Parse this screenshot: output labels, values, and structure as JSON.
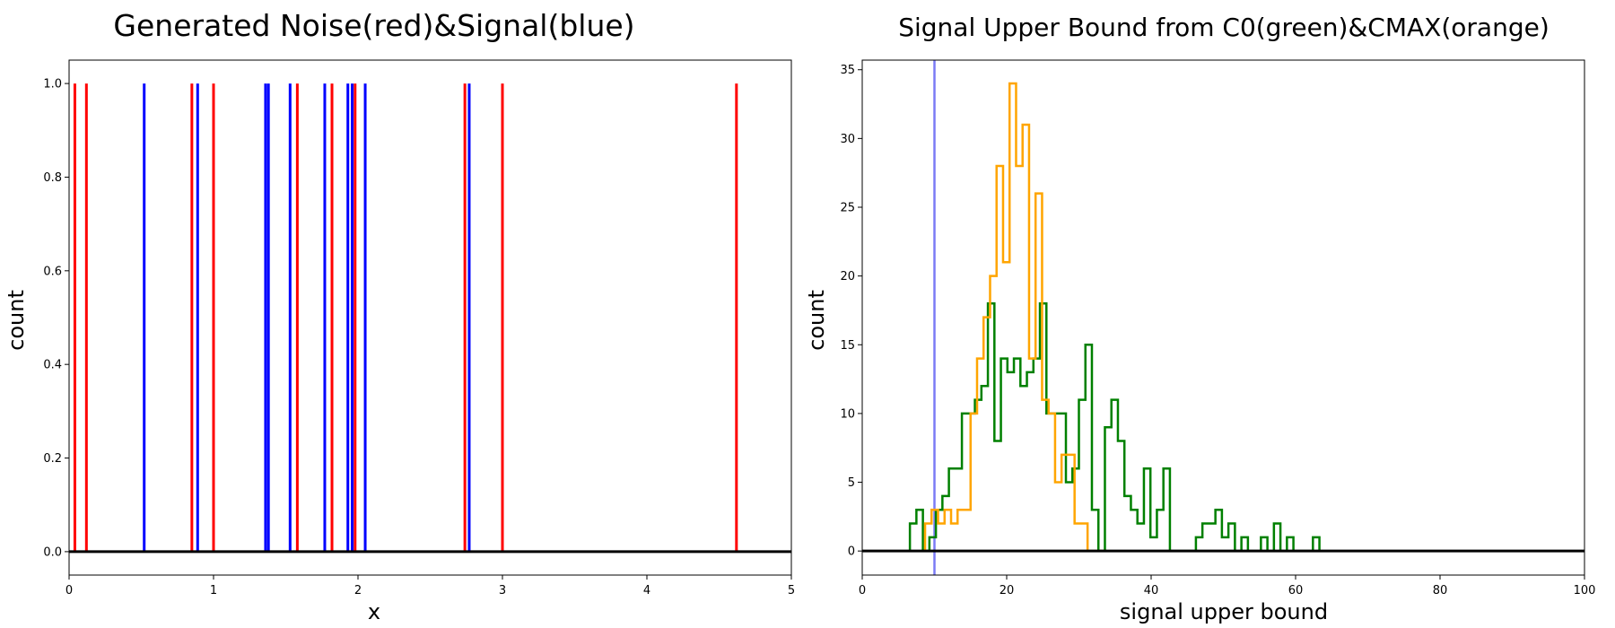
{
  "chart_data": [
    {
      "type": "line",
      "chart_style": "vertical impulse lines with a horizontal baseline",
      "title": "Generated Noise(red)&Signal(blue)",
      "xlabel": "x",
      "ylabel": "count",
      "xlim": [
        0,
        5
      ],
      "ylim": [
        -0.05,
        1.05
      ],
      "xticks": [
        0,
        1,
        2,
        3,
        4,
        5
      ],
      "xtick_labels": [
        "0",
        "1",
        "2",
        "3",
        "4",
        "5"
      ],
      "yticks": [
        0.0,
        0.2,
        0.4,
        0.6,
        0.8,
        1.0
      ],
      "ytick_labels": [
        "0.0",
        "0.2",
        "0.4",
        "0.6",
        "0.8",
        "1.0"
      ],
      "grid": false,
      "baseline": 0,
      "series": [
        {
          "color": "#ff0000",
          "x": [
            0.04,
            0.12,
            0.85,
            1.0,
            1.58,
            1.82,
            1.98,
            2.74,
            3.0,
            4.62
          ],
          "y": [
            1,
            1,
            1,
            1,
            1,
            1,
            1,
            1,
            1,
            1
          ]
        },
        {
          "color": "#0000ff",
          "x": [
            0.52,
            0.89,
            1.36,
            1.38,
            1.53,
            1.77,
            1.93,
            1.96,
            2.05,
            2.77
          ],
          "y": [
            1,
            1,
            1,
            1,
            1,
            1,
            1,
            1,
            1,
            1
          ]
        }
      ]
    },
    {
      "type": "line",
      "chart_style": "step histogram",
      "title": "Signal Upper Bound from C0(green)&CMAX(orange)",
      "xlabel": "signal upper bound",
      "ylabel": "count",
      "xlim": [
        0,
        100
      ],
      "ylim": [
        -1.75,
        35.7
      ],
      "xticks": [
        0,
        20,
        40,
        60,
        80,
        100
      ],
      "xtick_labels": [
        "0",
        "20",
        "40",
        "60",
        "80",
        "100"
      ],
      "yticks": [
        0,
        5,
        10,
        15,
        20,
        25,
        30,
        35
      ],
      "ytick_labels": [
        "0",
        "5",
        "10",
        "15",
        "20",
        "25",
        "30",
        "35"
      ],
      "grid": false,
      "baseline": 0,
      "vline": {
        "x": 10,
        "color": "#7b7bf5"
      },
      "series": [
        {
          "color": "#008000",
          "bin_edges": [
            6.6,
            7.5,
            8.4,
            9.3,
            10.2,
            11.1,
            12.0,
            12.9,
            13.8,
            14.7,
            15.6,
            16.5,
            17.4,
            18.3,
            19.2,
            20.1,
            21.0,
            21.9,
            22.8,
            23.7,
            24.6,
            25.5,
            26.4,
            27.3,
            28.2,
            29.1,
            30.0,
            30.9,
            31.8,
            32.7,
            33.6,
            34.5,
            35.4,
            36.3,
            37.2,
            38.1,
            39.0,
            39.9,
            40.8,
            41.7,
            42.6,
            43.5,
            44.4,
            45.3,
            46.2,
            47.1,
            48.0,
            48.9,
            49.8,
            50.7,
            51.6,
            52.5,
            53.4,
            54.3,
            55.2,
            56.1,
            57.0,
            57.9,
            58.8,
            59.7,
            60.6,
            61.5,
            62.4,
            63.3
          ],
          "counts": [
            2,
            3,
            0,
            1,
            3,
            4,
            6,
            6,
            10,
            10,
            11,
            12,
            18,
            8,
            14,
            13,
            14,
            12,
            13,
            14,
            18,
            10,
            10,
            10,
            5,
            6,
            11,
            15,
            3,
            0,
            9,
            11,
            8,
            4,
            3,
            2,
            6,
            1,
            3,
            6,
            0,
            0,
            0,
            0,
            1,
            2,
            2,
            3,
            1,
            2,
            0,
            1,
            0,
            0,
            1,
            0,
            2,
            0,
            1,
            0,
            0,
            0,
            1
          ]
        },
        {
          "color": "#ffa500",
          "bin_edges": [
            8.7,
            9.6,
            10.5,
            11.4,
            12.3,
            13.2,
            14.1,
            15.0,
            15.9,
            16.8,
            17.7,
            18.6,
            19.5,
            20.4,
            21.3,
            22.2,
            23.1,
            24.0,
            24.9,
            25.8,
            26.7,
            27.6,
            28.5,
            29.4,
            30.3,
            31.2,
            32.1,
            33.0,
            33.9
          ],
          "counts": [
            2,
            3,
            2,
            3,
            2,
            3,
            3,
            10,
            14,
            17,
            20,
            28,
            21,
            34,
            28,
            31,
            14,
            26,
            11,
            10,
            5,
            7,
            7,
            2,
            2,
            0,
            0,
            0
          ]
        }
      ]
    }
  ]
}
